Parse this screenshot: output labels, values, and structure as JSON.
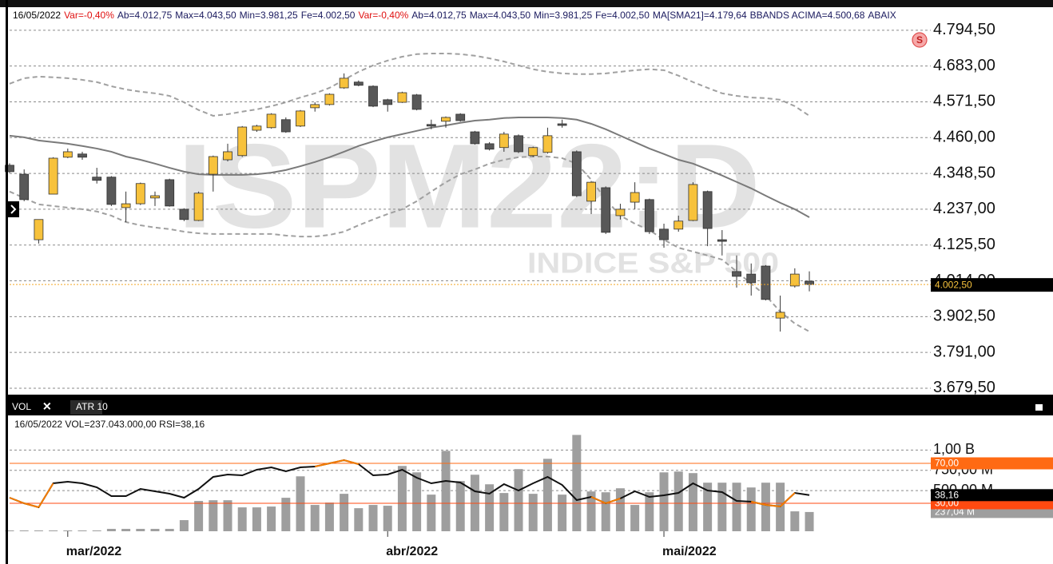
{
  "ui": {
    "header_items": [
      {
        "text": "16/05/2022",
        "color": "#000000"
      },
      {
        "text": "Var=-0,40%",
        "color": "#e01010"
      },
      {
        "text": "Ab=4.012,75",
        "color": "#1a1a5e"
      },
      {
        "text": "Max=4.043,50",
        "color": "#1a1a5e"
      },
      {
        "text": "Min=3.981,25",
        "color": "#1a1a5e"
      },
      {
        "text": "Fe=4.002,50",
        "color": "#1a1a5e"
      },
      {
        "text": "Var=-0,40%",
        "color": "#e01010"
      },
      {
        "text": "Ab=4.012,75",
        "color": "#1a1a5e"
      },
      {
        "text": "Max=4.043,50",
        "color": "#1a1a5e"
      },
      {
        "text": "Min=3.981,25",
        "color": "#1a1a5e"
      },
      {
        "text": "Fe=4.002,50",
        "color": "#1a1a5e"
      },
      {
        "text": "MA[SMA21]=4.179,64",
        "color": "#1a1a5e"
      },
      {
        "text": "BBANDS ACIMA=4.500,68",
        "color": "#1a1a5e"
      },
      {
        "text": "ABAIX",
        "color": "#1a1a5e"
      }
    ],
    "watermark_title": "ISPM22:D",
    "watermark_subtitle": "INDICE S&P 500",
    "badge": "S",
    "tabs": [
      "VOL",
      "ATR 10"
    ],
    "close_icon": "✕",
    "info_line": "16/05/2022 VOL=237.043.000,00 RSI=38,16"
  },
  "chart_data": [
    {
      "type": "candlestick",
      "x": [
        0,
        1,
        2,
        3,
        4,
        5,
        6,
        7,
        8,
        9,
        10,
        11,
        12,
        13,
        14,
        15,
        16,
        17,
        18,
        19,
        20,
        21,
        22,
        23,
        24,
        25,
        26,
        27,
        28,
        29,
        30,
        31,
        32,
        33,
        34,
        35,
        36,
        37,
        38,
        39,
        40,
        41,
        42,
        43,
        44,
        45,
        46,
        47,
        48,
        49,
        50,
        51,
        52,
        53,
        54,
        55
      ],
      "xlim": [
        -0.22,
        63.35
      ],
      "open": [
        4374,
        4346,
        4142,
        4284,
        4399,
        4409,
        4337,
        4337,
        4242,
        4254,
        4272,
        4329,
        4237,
        4202,
        4346,
        4391,
        4404,
        4483,
        4491,
        4516,
        4496,
        4553,
        4563,
        4615,
        4633,
        4620,
        4578,
        4570,
        4593,
        4501,
        4511,
        4533,
        4478,
        4441,
        4429,
        4466,
        4404,
        4414,
        4503,
        4416,
        4262,
        4304,
        4217,
        4259,
        4267,
        4175,
        4175,
        4202,
        4292,
        4142,
        4043,
        4035,
        4060,
        3898,
        3998,
        4012.75
      ],
      "high": [
        4380,
        4361,
        4205,
        4399,
        4426,
        4416,
        4366,
        4340,
        4292,
        4320,
        4292,
        4332,
        4240,
        4292,
        4404,
        4441,
        4496,
        4500,
        4536,
        4523,
        4546,
        4570,
        4598,
        4660,
        4638,
        4623,
        4581,
        4603,
        4596,
        4516,
        4526,
        4536,
        4481,
        4446,
        4478,
        4470,
        4432,
        4491,
        4516,
        4420,
        4325,
        4308,
        4254,
        4321,
        4270,
        4192,
        4217,
        4321,
        4295,
        4172,
        4093,
        4068,
        4063,
        3968,
        4053,
        4043.5
      ],
      "low": [
        4350,
        4262,
        4130,
        4284,
        4396,
        4391,
        4317,
        4247,
        4197,
        4250,
        4247,
        4245,
        4200,
        4200,
        4292,
        4386,
        4400,
        4478,
        4488,
        4475,
        4493,
        4541,
        4560,
        4612,
        4620,
        4555,
        4541,
        4568,
        4545,
        4486,
        4491,
        4510,
        4438,
        4420,
        4416,
        4412,
        4400,
        4410,
        4491,
        4275,
        4222,
        4160,
        4205,
        4237,
        4160,
        4117,
        4167,
        4200,
        4122,
        4093,
        3993,
        3968,
        3953,
        3856,
        3993,
        3981.25
      ],
      "close": [
        4354,
        4267,
        4205,
        4396,
        4416,
        4399,
        4327,
        4252,
        4254,
        4317,
        4279,
        4247,
        4205,
        4287,
        4401,
        4416,
        4493,
        4496,
        4533,
        4478,
        4543,
        4563,
        4595,
        4645,
        4623,
        4558,
        4563,
        4600,
        4548,
        4496,
        4523,
        4513,
        4441,
        4424,
        4471,
        4416,
        4429,
        4466,
        4498,
        4279,
        4321,
        4165,
        4237,
        4289,
        4167,
        4142,
        4200,
        4314,
        4177,
        4137,
        4028,
        4008,
        3956,
        3916,
        4035,
        4002.5
      ],
      "up_color": "#f7c23c",
      "down_color": "#585858",
      "lines": [
        {
          "color": "#7a7a7a",
          "dashed": false,
          "values": [
            4466,
            4461,
            4451,
            4446,
            4441,
            4434,
            4426,
            4416,
            4401,
            4391,
            4379,
            4366,
            4354,
            4346,
            4344,
            4344,
            4344,
            4346,
            4351,
            4359,
            4371,
            4384,
            4399,
            4416,
            4434,
            4448,
            4461,
            4471,
            4481,
            4491,
            4498,
            4506,
            4513,
            4516,
            4521,
            4523,
            4523,
            4523,
            4521,
            4516,
            4503,
            4486,
            4466,
            4446,
            4426,
            4409,
            4391,
            4379,
            4361,
            4342,
            4322,
            4302,
            4279,
            4257,
            4237,
            4212
          ]
        },
        {
          "color": "#a0a0a0",
          "dashed": true,
          "values": [
            4628,
            4645,
            4650,
            4648,
            4645,
            4640,
            4633,
            4620,
            4610,
            4603,
            4598,
            4590,
            4570,
            4546,
            4528,
            4533,
            4541,
            4548,
            4558,
            4570,
            4585,
            4598,
            4615,
            4640,
            4665,
            4685,
            4700,
            4712,
            4720,
            4722,
            4722,
            4720,
            4715,
            4707,
            4697,
            4685,
            4673,
            4665,
            4660,
            4658,
            4658,
            4660,
            4665,
            4670,
            4673,
            4670,
            4653,
            4633,
            4615,
            4598,
            4590,
            4585,
            4583,
            4578,
            4558,
            4528
          ]
        },
        {
          "color": "#a0a0a0",
          "dashed": true,
          "values": [
            4292,
            4272,
            4252,
            4247,
            4242,
            4237,
            4230,
            4217,
            4197,
            4187,
            4180,
            4175,
            4167,
            4162,
            4160,
            4160,
            4160,
            4160,
            4160,
            4155,
            4152,
            4152,
            4157,
            4167,
            4187,
            4205,
            4222,
            4237,
            4262,
            4292,
            4321,
            4346,
            4361,
            4379,
            4391,
            4399,
            4401,
            4401,
            4396,
            4379,
            4329,
            4267,
            4217,
            4192,
            4172,
            4142,
            4117,
            4105,
            4093,
            4080,
            4043,
            4005,
            3968,
            3918,
            3881,
            3856
          ]
        }
      ],
      "ylim": [
        3662,
        4814
      ],
      "yticks": [
        {
          "value": 4794.5,
          "label": "4.794,50"
        },
        {
          "value": 4683,
          "label": "4.683,00"
        },
        {
          "value": 4571.5,
          "label": "4.571,50"
        },
        {
          "value": 4460,
          "label": "4.460,00"
        },
        {
          "value": 4348.5,
          "label": "4.348,50"
        },
        {
          "value": 4237,
          "label": "4.237,00"
        },
        {
          "value": 4125.5,
          "label": "4.125,50"
        },
        {
          "value": 4014,
          "label": "4.014,00"
        },
        {
          "value": 3902.5,
          "label": "3.902,50"
        },
        {
          "value": 3791,
          "label": "3.791,00"
        },
        {
          "value": 3679.5,
          "label": "3.679,50"
        }
      ],
      "grid": true,
      "last_price": {
        "value": 4002.5,
        "label": "4.002,50",
        "color": "#f5a623"
      }
    },
    {
      "type": "bar",
      "x": [
        0,
        1,
        2,
        3,
        4,
        5,
        6,
        7,
        8,
        9,
        10,
        11,
        12,
        13,
        14,
        15,
        16,
        17,
        18,
        19,
        20,
        21,
        22,
        23,
        24,
        25,
        26,
        27,
        28,
        29,
        30,
        31,
        32,
        33,
        34,
        35,
        36,
        37,
        38,
        39,
        40,
        41,
        42,
        43,
        44,
        45,
        46,
        47,
        48,
        49,
        50,
        51,
        52,
        53,
        54,
        55
      ],
      "xlim": [
        -0.22,
        63.35
      ],
      "xticks": [
        {
          "value": 4,
          "label": "mar/2022"
        },
        {
          "value": 26,
          "label": "abr/2022"
        },
        {
          "value": 45,
          "label": "mai/2022"
        }
      ],
      "values": [
        10000000,
        10000000,
        10000000,
        10000000,
        10000000,
        10000000,
        10000000,
        29000000,
        29000000,
        29000000,
        29000000,
        29000000,
        137000000,
        373000000,
        382000000,
        382000000,
        294000000,
        294000000,
        304000000,
        412000000,
        676000000,
        324000000,
        353000000,
        461000000,
        284000000,
        324000000,
        314000000,
        804000000,
        725000000,
        451000000,
        990000000,
        618000000,
        696000000,
        578000000,
        471000000,
        765000000,
        461000000,
        892000000,
        451000000,
        1186000000,
        490000000,
        480000000,
        529000000,
        324000000,
        480000000,
        725000000,
        735000000,
        716000000,
        598000000,
        598000000,
        598000000,
        539000000,
        598000000,
        598000000,
        245000000,
        237043000
      ],
      "color": "#9e9e9e",
      "ylim": [
        0,
        1200000000
      ],
      "yticks": [
        {
          "value": 1000000000,
          "label": "1,00 B"
        },
        {
          "value": 750000000,
          "label": "750,00 M"
        },
        {
          "value": 500000000,
          "label": "500,00 M"
        }
      ],
      "grid": true,
      "last_value": {
        "value": 237043000,
        "label": "237,04 M",
        "box_color": "#9e9e9e"
      },
      "series": [
        {
          "axis": "y2",
          "color": "#111111",
          "extreme_color": "#f57c00",
          "values": [
            35.6,
            30,
            26,
            50,
            51.6,
            50,
            46,
            37.2,
            37.2,
            44.4,
            42,
            39.6,
            35.6,
            44.4,
            56.4,
            58.8,
            58,
            63.6,
            66,
            62,
            66,
            66.8,
            70,
            73.2,
            69.2,
            58,
            58.8,
            63.6,
            55.6,
            50,
            52.4,
            50.8,
            42,
            39.6,
            49.2,
            42.8,
            50,
            56.4,
            48.4,
            33.2,
            36.4,
            30,
            34.8,
            42,
            36.4,
            38,
            40.4,
            50,
            42.8,
            41.2,
            32.4,
            31.6,
            28.4,
            26.8,
            40.4,
            38.16
          ],
          "last_label": {
            "value": 38.16,
            "label": "38,16",
            "box_color": "#000000"
          }
        }
      ],
      "y2lim": [
        2,
        99.6
      ],
      "levels": [
        {
          "value": 70,
          "label": "70,00",
          "color": "#ff6a13"
        },
        {
          "value": 30,
          "label": "30,00",
          "color": "#ff4a10"
        }
      ]
    }
  ]
}
